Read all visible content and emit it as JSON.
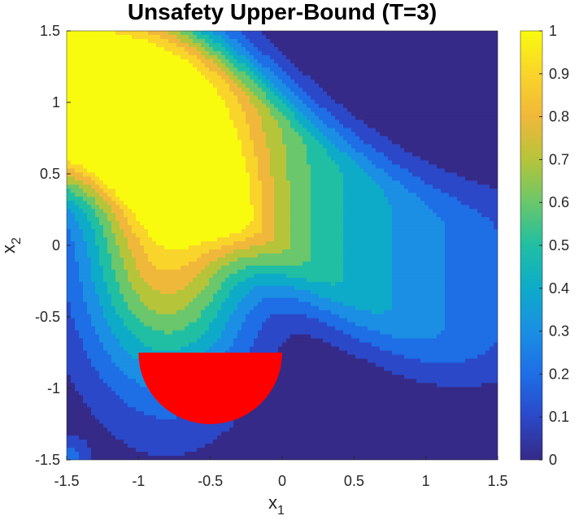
{
  "chart_data": {
    "type": "heatmap",
    "title": "Unsafety Upper-Bound (T=3)",
    "xlabel": "x",
    "xlabel_sub": "1",
    "ylabel": "x",
    "ylabel_sub": "2",
    "xlim": [
      -1.5,
      1.5
    ],
    "ylim": [
      -1.5,
      1.5
    ],
    "x_ticks": [
      "-1.5",
      "-1",
      "-0.5",
      "0",
      "0.5",
      "1",
      "1.5"
    ],
    "y_ticks": [
      "-1.5",
      "-1",
      "-0.5",
      "0",
      "0.5",
      "1",
      "1.5"
    ],
    "colorbar": {
      "range": [
        0,
        1
      ],
      "ticks": [
        "0",
        "0.1",
        "0.2",
        "0.3",
        "0.4",
        "0.5",
        "0.6",
        "0.7",
        "0.8",
        "0.9",
        "1"
      ],
      "colormap": "parula"
    },
    "unsafe_region": {
      "shape": "lower half-disk",
      "center": [
        -0.5,
        -0.75
      ],
      "radius": 0.5,
      "color": "#ff0000"
    },
    "description_values": {
      "max_value": 1,
      "min_value": 0
    }
  },
  "colors": {
    "parula": [
      "#352a87",
      "#2b48c8",
      "#1e6ee6",
      "#1a8fe3",
      "#0eabc9",
      "#20bfa3",
      "#6ac76b",
      "#b6c43a",
      "#f0b83a",
      "#f9d42a",
      "#f9fb0e"
    ],
    "unsafe": "#ff0000",
    "axis": "#262626"
  }
}
